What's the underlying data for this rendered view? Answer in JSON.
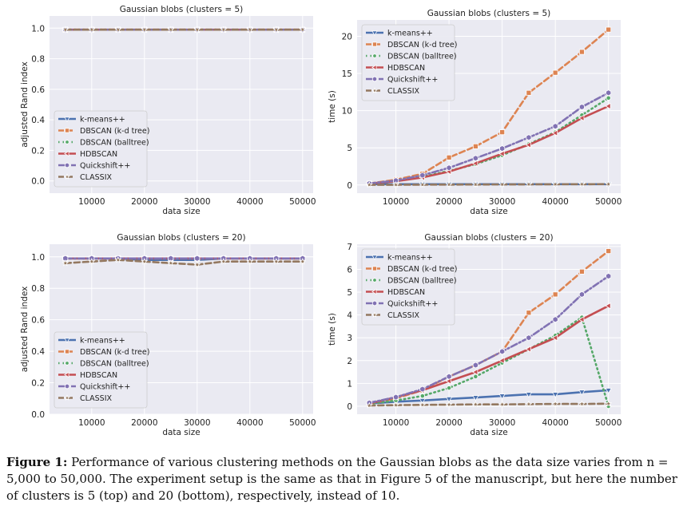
{
  "colors": {
    "background": "#eaeaf2",
    "grid": "#ffffff",
    "series": [
      "#4c72b0",
      "#dd8452",
      "#55a868",
      "#c44e52",
      "#8172b3",
      "#937860"
    ]
  },
  "chart_data": [
    {
      "type": "line",
      "title": "Gaussian blobs (clusters = 5)",
      "xlabel": "data size",
      "ylabel": "adjusted Rand index",
      "xlim": [
        2000,
        52000
      ],
      "ylim": [
        -0.08,
        1.08
      ],
      "xticks": [
        10000,
        20000,
        30000,
        40000,
        50000
      ],
      "xtick_labels": [
        "10000",
        "20000",
        "30000",
        "40000",
        "50000"
      ],
      "yticks": [
        0.0,
        0.2,
        0.4,
        0.6,
        0.8,
        1.0
      ],
      "ytick_labels": [
        "0.0",
        "0.2",
        "0.4",
        "0.6",
        "0.8",
        "1.0"
      ],
      "grid": true,
      "legend": "lower-left",
      "x": [
        5000,
        10000,
        15000,
        20000,
        25000,
        30000,
        35000,
        40000,
        45000,
        50000
      ],
      "series": [
        {
          "name": "k-means++",
          "style": "solid",
          "marker": "triangle-down",
          "values": [
            0.99,
            0.99,
            0.99,
            0.99,
            0.99,
            0.99,
            0.99,
            0.99,
            0.99,
            0.99
          ]
        },
        {
          "name": "DBSCAN (k-d tree)",
          "style": "dashed",
          "marker": "square",
          "values": [
            0.99,
            0.99,
            0.99,
            0.99,
            0.99,
            0.99,
            0.99,
            0.99,
            0.99,
            0.99
          ]
        },
        {
          "name": "DBSCAN (balltree)",
          "style": "dotted",
          "marker": "circle",
          "values": [
            0.99,
            0.99,
            0.99,
            0.99,
            0.99,
            0.99,
            0.99,
            0.99,
            0.99,
            0.99
          ]
        },
        {
          "name": "HDBSCAN",
          "style": "solid",
          "marker": "triangle-left",
          "values": [
            0.99,
            0.99,
            0.99,
            0.99,
            0.99,
            0.99,
            0.99,
            0.99,
            0.99,
            0.99
          ]
        },
        {
          "name": "Quickshift++",
          "style": "dashdot",
          "marker": "hexagon",
          "values": [
            0.99,
            0.99,
            0.99,
            0.99,
            0.99,
            0.99,
            0.99,
            0.99,
            0.99,
            0.99
          ]
        },
        {
          "name": "CLASSIX",
          "style": "dashed",
          "marker": "star",
          "values": [
            0.99,
            0.99,
            0.99,
            0.99,
            0.99,
            0.99,
            0.99,
            0.99,
            0.99,
            0.99
          ]
        }
      ]
    },
    {
      "type": "line",
      "title": "Gaussian blobs (clusters = 5)",
      "xlabel": "data size",
      "ylabel": "time (s)",
      "xlim": [
        2700,
        52300
      ],
      "ylim": [
        -1.1,
        22.2
      ],
      "xticks": [
        10000,
        20000,
        30000,
        40000,
        50000
      ],
      "xtick_labels": [
        "10000",
        "20000",
        "30000",
        "40000",
        "50000"
      ],
      "yticks": [
        0,
        5,
        10,
        15,
        20
      ],
      "ytick_labels": [
        "0",
        "5",
        "10",
        "15",
        "20"
      ],
      "grid": true,
      "legend": "upper-left",
      "x": [
        5000,
        10000,
        15000,
        20000,
        25000,
        30000,
        35000,
        40000,
        45000,
        50000
      ],
      "series": [
        {
          "name": "k-means++",
          "style": "solid",
          "marker": "triangle-down",
          "values": [
            0.1,
            0.1,
            0.1,
            0.1,
            0.1,
            0.1,
            0.1,
            0.1,
            0.1,
            0.1
          ]
        },
        {
          "name": "DBSCAN (k-d tree)",
          "style": "dashed",
          "marker": "square",
          "values": [
            0.2,
            0.7,
            1.5,
            3.7,
            5.2,
            7.1,
            12.4,
            15.1,
            17.9,
            20.9
          ]
        },
        {
          "name": "DBSCAN (balltree)",
          "style": "dotted",
          "marker": "circle",
          "values": [
            0.2,
            0.5,
            1.1,
            1.9,
            2.8,
            4.0,
            5.5,
            7.1,
            9.4,
            11.7
          ]
        },
        {
          "name": "HDBSCAN",
          "style": "solid",
          "marker": "triangle-left",
          "values": [
            0.2,
            0.5,
            1.0,
            1.8,
            2.9,
            4.2,
            5.4,
            7.0,
            9.0,
            10.6
          ]
        },
        {
          "name": "Quickshift++",
          "style": "dashdot",
          "marker": "hexagon",
          "values": [
            0.2,
            0.6,
            1.3,
            2.3,
            3.6,
            4.9,
            6.4,
            7.9,
            10.5,
            12.4
          ]
        },
        {
          "name": "CLASSIX",
          "style": "dashed",
          "marker": "star",
          "values": [
            0.02,
            0.03,
            0.04,
            0.05,
            0.06,
            0.07,
            0.08,
            0.09,
            0.1,
            0.11
          ]
        }
      ]
    },
    {
      "type": "line",
      "title": "Gaussian blobs (clusters = 20)",
      "xlabel": "data size",
      "ylabel": "adjusted Rand index",
      "xlim": [
        2000,
        52000
      ],
      "ylim": [
        0.0,
        1.08
      ],
      "xticks": [
        10000,
        20000,
        30000,
        40000,
        50000
      ],
      "xtick_labels": [
        "10000",
        "20000",
        "30000",
        "40000",
        "50000"
      ],
      "yticks": [
        0.0,
        0.2,
        0.4,
        0.6,
        0.8,
        1.0
      ],
      "ytick_labels": [
        "0.0",
        "0.2",
        "0.4",
        "0.6",
        "0.8",
        "1.0"
      ],
      "grid": true,
      "legend": "lower-left",
      "x": [
        5000,
        10000,
        15000,
        20000,
        25000,
        30000,
        35000,
        40000,
        45000,
        50000
      ],
      "series": [
        {
          "name": "k-means++",
          "style": "solid",
          "marker": "triangle-down",
          "values": [
            0.99,
            0.99,
            0.99,
            0.98,
            0.98,
            0.98,
            0.99,
            0.99,
            0.99,
            0.99
          ]
        },
        {
          "name": "DBSCAN (k-d tree)",
          "style": "dashed",
          "marker": "square",
          "values": [
            0.99,
            0.99,
            0.99,
            0.99,
            0.99,
            0.99,
            0.99,
            0.99,
            0.99,
            0.99
          ]
        },
        {
          "name": "DBSCAN (balltree)",
          "style": "dotted",
          "marker": "circle",
          "values": [
            0.99,
            0.99,
            0.99,
            0.99,
            0.99,
            0.99,
            0.99,
            0.99,
            0.99,
            0.99
          ]
        },
        {
          "name": "HDBSCAN",
          "style": "solid",
          "marker": "triangle-left",
          "values": [
            0.99,
            0.99,
            0.99,
            0.99,
            0.99,
            0.99,
            0.99,
            0.99,
            0.99,
            0.99
          ]
        },
        {
          "name": "Quickshift++",
          "style": "dashdot",
          "marker": "hexagon",
          "values": [
            0.99,
            0.99,
            0.99,
            0.99,
            0.99,
            0.99,
            0.99,
            0.99,
            0.99,
            0.99
          ]
        },
        {
          "name": "CLASSIX",
          "style": "dashed",
          "marker": "star",
          "values": [
            0.96,
            0.97,
            0.98,
            0.97,
            0.96,
            0.95,
            0.97,
            0.97,
            0.97,
            0.97
          ]
        }
      ]
    },
    {
      "type": "line",
      "title": "Gaussian blobs (clusters = 20)",
      "xlabel": "data size",
      "ylabel": "time (s)",
      "xlim": [
        2700,
        52300
      ],
      "ylim": [
        -0.35,
        7.1
      ],
      "xticks": [
        10000,
        20000,
        30000,
        40000,
        50000
      ],
      "xtick_labels": [
        "10000",
        "20000",
        "30000",
        "40000",
        "50000"
      ],
      "yticks": [
        0,
        1,
        2,
        3,
        4,
        5,
        6,
        7
      ],
      "ytick_labels": [
        "0",
        "1",
        "2",
        "3",
        "4",
        "5",
        "6",
        "7"
      ],
      "grid": true,
      "legend": "upper-left",
      "x": [
        5000,
        10000,
        15000,
        20000,
        25000,
        30000,
        35000,
        40000,
        45000,
        50000
      ],
      "series": [
        {
          "name": "k-means++",
          "style": "solid",
          "marker": "triangle-down",
          "values": [
            0.12,
            0.2,
            0.25,
            0.32,
            0.38,
            0.45,
            0.52,
            0.52,
            0.62,
            0.7
          ]
        },
        {
          "name": "DBSCAN (k-d tree)",
          "style": "dashed",
          "marker": "square",
          "values": [
            0.1,
            0.35,
            0.7,
            1.3,
            1.8,
            2.4,
            4.1,
            4.9,
            5.9,
            6.8
          ]
        },
        {
          "name": "DBSCAN (balltree)",
          "style": "dotted",
          "marker": "circle",
          "values": [
            0.1,
            0.25,
            0.45,
            0.8,
            1.3,
            1.9,
            2.5,
            3.1,
            3.9,
            0
          ]
        },
        {
          "name": "HDBSCAN",
          "style": "solid",
          "marker": "triangle-left",
          "values": [
            0.12,
            0.4,
            0.7,
            1.1,
            1.5,
            2.0,
            2.5,
            3.0,
            3.8,
            4.4
          ]
        },
        {
          "name": "Quickshift++",
          "style": "dashdot",
          "marker": "hexagon",
          "values": [
            0.15,
            0.4,
            0.75,
            1.3,
            1.8,
            2.4,
            3.0,
            3.8,
            4.9,
            5.7
          ]
        },
        {
          "name": "CLASSIX",
          "style": "dashed",
          "marker": "star",
          "values": [
            0.03,
            0.05,
            0.06,
            0.07,
            0.08,
            0.08,
            0.09,
            0.1,
            0.1,
            0.11
          ]
        }
      ]
    }
  ],
  "caption": {
    "label": "Figure 1:",
    "text": " Performance of various clustering methods on the Gaussian blobs as the data size varies from n = 5,000 to 50,000. The experiment setup is the same as that in Figure 5 of the manuscript, but here the number of clusters is 5 (top) and 20 (bottom), respectively, instead of 10."
  }
}
